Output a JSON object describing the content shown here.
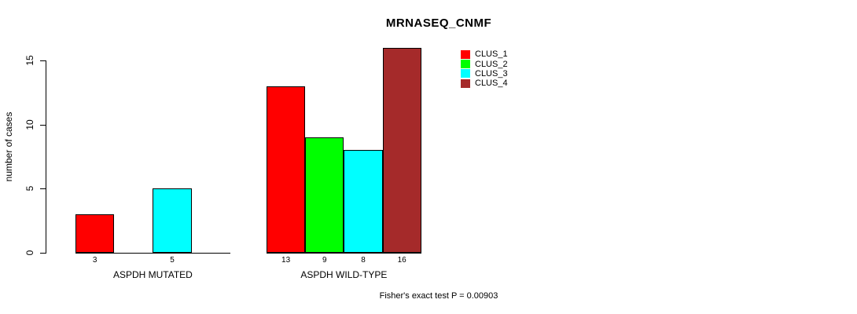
{
  "chart_data": {
    "type": "bar",
    "title": "MRNASEQ_CNMF",
    "ylabel": "number of cases",
    "xlabel": "",
    "ylim": [
      0,
      16
    ],
    "yticks": [
      0,
      5,
      10,
      15
    ],
    "grid": false,
    "legend_position": "top-right",
    "legend": [
      {
        "label": "CLUS_1",
        "color": "#ff0000"
      },
      {
        "label": "CLUS_2",
        "color": "#00ff00"
      },
      {
        "label": "CLUS_3",
        "color": "#00ffff"
      },
      {
        "label": "CLUS_4",
        "color": "#a52a2a"
      }
    ],
    "groups": [
      {
        "label": "ASPDH MUTATED",
        "slots": 4,
        "bars": [
          {
            "slot": 0,
            "cluster": "CLUS_1",
            "value": 3,
            "color": "#ff0000"
          },
          {
            "slot": 2,
            "cluster": "CLUS_3",
            "value": 5,
            "color": "#00ffff"
          }
        ]
      },
      {
        "label": "ASPDH WILD-TYPE",
        "slots": 4,
        "bars": [
          {
            "slot": 0,
            "cluster": "CLUS_1",
            "value": 13,
            "color": "#ff0000"
          },
          {
            "slot": 1,
            "cluster": "CLUS_2",
            "value": 9,
            "color": "#00ff00"
          },
          {
            "slot": 2,
            "cluster": "CLUS_3",
            "value": 8,
            "color": "#00ffff"
          },
          {
            "slot": 3,
            "cluster": "CLUS_4",
            "value": 16,
            "color": "#a52a2a"
          }
        ]
      }
    ],
    "footnote": "Fisher's exact test P = 0.00903"
  },
  "colors": {
    "axis": "#000000",
    "text": "#000000",
    "background": "#ffffff"
  }
}
